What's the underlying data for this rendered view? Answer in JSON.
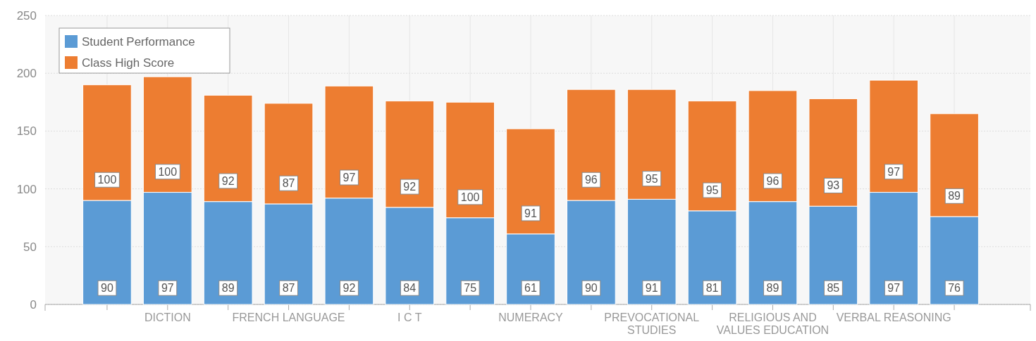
{
  "chart_data": {
    "type": "bar",
    "stacked": true,
    "categories": [
      null,
      "DICTION",
      null,
      "FRENCH LANGUAGE",
      null,
      "I C T",
      null,
      "NUMERACY",
      null,
      "PREVOCATIONAL STUDIES",
      null,
      "RELIGIOUS AND VALUES EDUCATION",
      null,
      "VERBAL REASONING",
      null
    ],
    "series": [
      {
        "name": "Student Performance",
        "color": "#5b9bd5",
        "values": [
          90,
          97,
          89,
          87,
          92,
          84,
          75,
          61,
          90,
          91,
          81,
          89,
          85,
          97,
          76
        ]
      },
      {
        "name": "Class High Score",
        "color": "#ed7d31",
        "values": [
          100,
          100,
          92,
          87,
          97,
          92,
          100,
          91,
          96,
          95,
          95,
          96,
          93,
          97,
          89
        ]
      }
    ],
    "ylim": [
      0,
      250
    ],
    "yticks": [
      0,
      50,
      100,
      150,
      200,
      250
    ],
    "grid": true,
    "legend": "top left",
    "data_labels": true
  }
}
